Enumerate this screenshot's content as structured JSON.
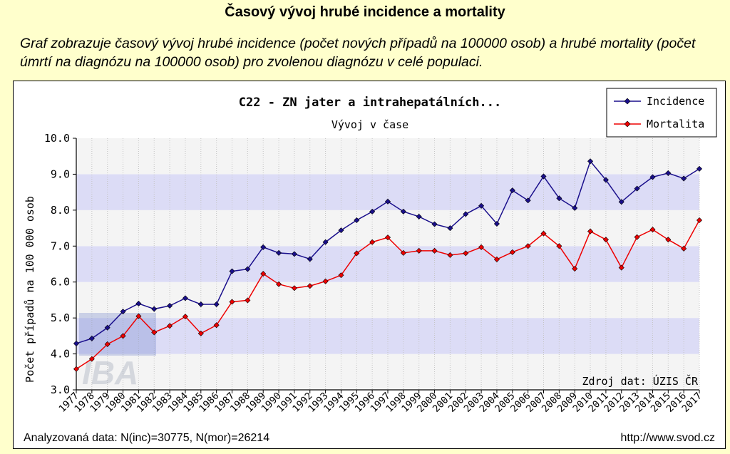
{
  "page": {
    "title": "Časový vývoj hrubé incidence a mortality",
    "description": "Graf zobrazuje časový vývoj hrubé incidence (počet nových případů na 100000 osob) a hrubé mortality (počet úmrtí na diagnózu na 100000 osob) pro zvolenou diagnózu v celé populaci."
  },
  "chart_data": {
    "type": "line",
    "title": "C22 - ZN jater a intrahepatálních...",
    "subtitle": "Vývoj v čase",
    "ylabel": "Počet případů na 100 000 osob",
    "xlabel": "",
    "ylim": [
      3.0,
      10.0
    ],
    "yticks": [
      "3.0",
      "4.0",
      "5.0",
      "6.0",
      "7.0",
      "8.0",
      "9.0",
      "10.0"
    ],
    "categories": [
      "1977",
      "1978",
      "1979",
      "1980",
      "1981",
      "1982",
      "1983",
      "1984",
      "1985",
      "1986",
      "1987",
      "1988",
      "1989",
      "1990",
      "1991",
      "1992",
      "1993",
      "1994",
      "1995",
      "1996",
      "1997",
      "1998",
      "1999",
      "2000",
      "2001",
      "2002",
      "2003",
      "2004",
      "2005",
      "2006",
      "2007",
      "2008",
      "2009",
      "2010",
      "2011",
      "2012",
      "2013",
      "2014",
      "2015",
      "2016",
      "2017"
    ],
    "series": [
      {
        "name": "Incidence",
        "color": "#1a0f8c",
        "values": [
          4.29,
          4.43,
          4.73,
          5.18,
          5.4,
          5.25,
          5.34,
          5.55,
          5.38,
          5.38,
          6.3,
          6.36,
          6.97,
          6.81,
          6.78,
          6.64,
          7.11,
          7.44,
          7.72,
          7.96,
          8.24,
          7.96,
          7.82,
          7.61,
          7.5,
          7.89,
          8.12,
          7.62,
          8.55,
          8.27,
          8.94,
          8.33,
          8.06,
          9.36,
          8.84,
          8.23,
          8.6,
          8.92,
          9.03,
          8.88,
          9.15
        ]
      },
      {
        "name": "Mortalita",
        "color": "#ee0000",
        "values": [
          3.58,
          3.86,
          4.27,
          4.5,
          5.05,
          4.6,
          4.78,
          5.04,
          4.57,
          4.8,
          5.45,
          5.49,
          6.23,
          5.94,
          5.83,
          5.89,
          6.02,
          6.19,
          6.8,
          7.11,
          7.24,
          6.81,
          6.87,
          6.87,
          6.75,
          6.8,
          6.97,
          6.63,
          6.83,
          7.0,
          7.35,
          7.0,
          6.37,
          7.41,
          7.18,
          6.4,
          7.25,
          7.46,
          7.18,
          6.93,
          7.72
        ]
      }
    ],
    "legend_position": "top-right",
    "grid": true,
    "source_note": "Zdroj dat: ÚZIS ČR",
    "watermark_text": "IBA"
  },
  "footer": {
    "analyzed": "Analyzovaná data: N(inc)=30775, N(mor)=26214",
    "url": "http://www.svod.cz"
  }
}
